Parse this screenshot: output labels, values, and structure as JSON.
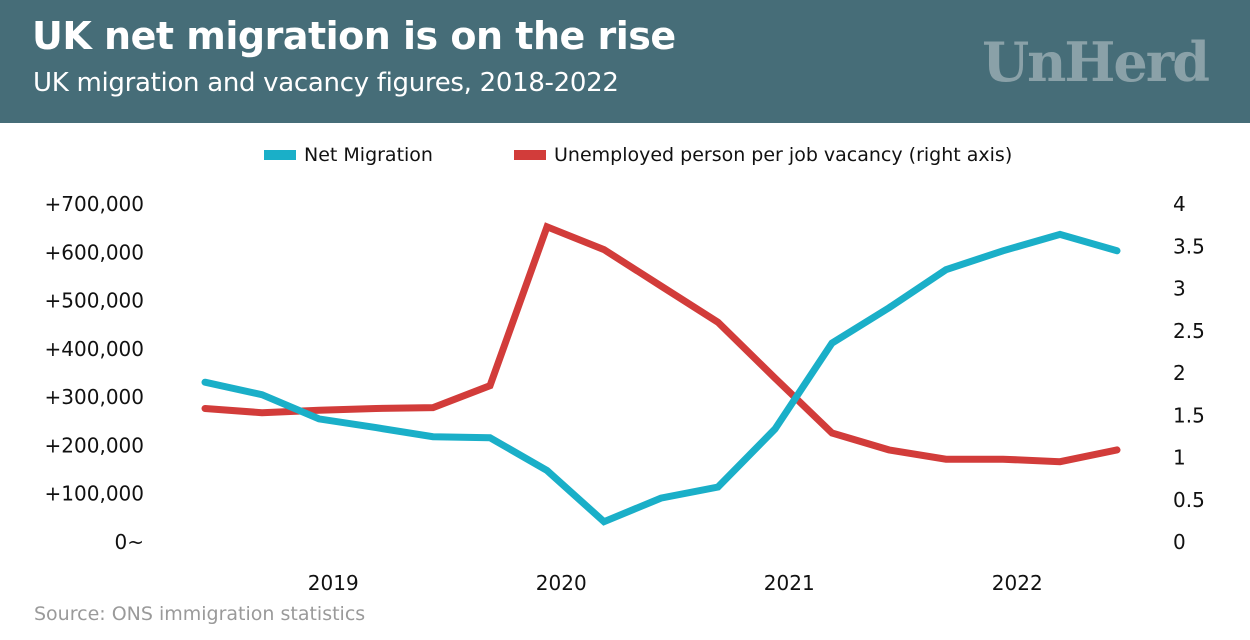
{
  "header": {
    "title": "UK net migration is on the rise",
    "subtitle": "UK migration and vacancy figures, 2018-2022",
    "logo": "UnHerd",
    "background_color": "#466d78"
  },
  "source": "Source: ONS immigration statistics",
  "chart_data": {
    "type": "line",
    "title": "UK net migration is on the rise",
    "subtitle": "UK migration and vacancy figures, 2018-2022",
    "xlabel": "",
    "ylabel_left": "",
    "ylabel_right": "",
    "x": [
      "2018 Q2",
      "2018 Q3",
      "2018 Q4",
      "2019 Q1",
      "2019 Q2",
      "2019 Q3",
      "2019 Q4",
      "2020 Q1",
      "2020 Q2",
      "2020 Q3",
      "2020 Q4",
      "2021 Q1",
      "2021 Q2",
      "2021 Q3",
      "2021 Q4",
      "2022 Q1",
      "2022 Q2"
    ],
    "x_tick_labels": [
      "2019",
      "2020",
      "2021",
      "2022"
    ],
    "x_tick_indices": [
      2.25,
      6.25,
      10.25,
      14.25
    ],
    "y_left": {
      "range": [
        0,
        700000
      ],
      "ticks": [
        0,
        100000,
        200000,
        300000,
        400000,
        500000,
        600000,
        700000
      ],
      "tick_labels": [
        "0~",
        "+100,000",
        "+200,000",
        "+300,000",
        "+400,000",
        "+500,000",
        "+600,000",
        "+700,000"
      ]
    },
    "y_right": {
      "range": [
        0,
        4
      ],
      "ticks": [
        0,
        0.5,
        1,
        1.5,
        2,
        2.5,
        3,
        3.5,
        4
      ],
      "tick_labels": [
        "0",
        "0.5",
        "1",
        "1.5",
        "2",
        "2.5",
        "3",
        "3.5",
        "4"
      ]
    },
    "grid": false,
    "legend_position": "top-center",
    "series": [
      {
        "name": "Net Migration",
        "axis": "left",
        "color": "#1aafc8",
        "values": [
          331000,
          305000,
          255000,
          237000,
          218000,
          216000,
          148000,
          42000,
          91000,
          114000,
          234000,
          412000,
          485000,
          564000,
          603000,
          637000,
          603000
        ]
      },
      {
        "name": "Unemployed person per job vacancy (right axis)",
        "axis": "right",
        "color": "#d23c3a",
        "values": [
          1.58,
          1.53,
          1.56,
          1.58,
          1.59,
          1.85,
          3.73,
          3.46,
          3.03,
          2.6,
          1.94,
          1.29,
          1.09,
          0.98,
          0.98,
          0.95,
          1.09
        ]
      }
    ]
  }
}
